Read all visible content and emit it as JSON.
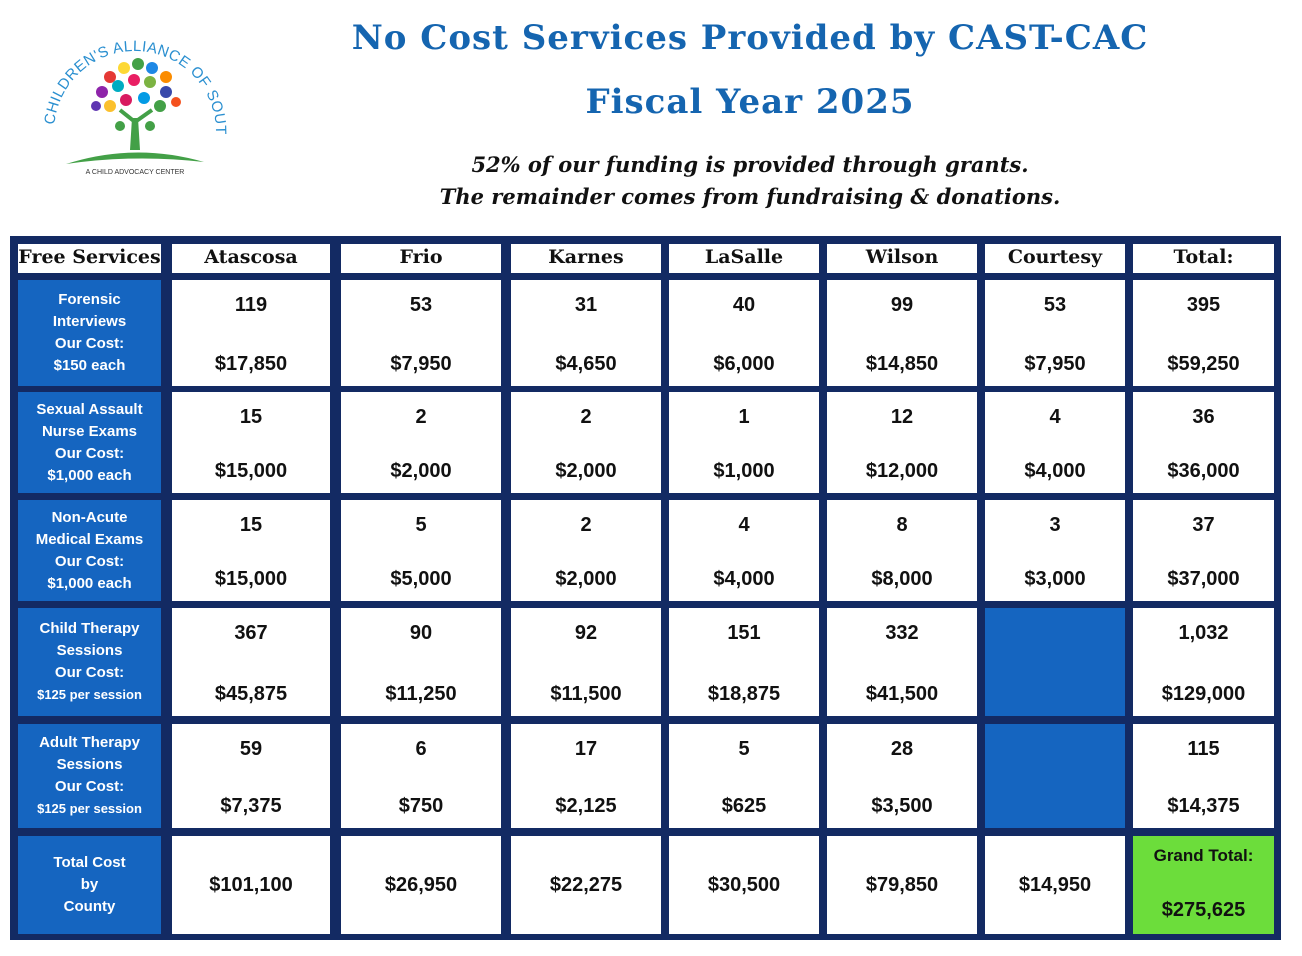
{
  "header": {
    "title_line1": "No Cost Services Provided by CAST-CAC",
    "title_line2": "Fiscal Year 2025",
    "subtitle_line1": "52% of our funding is provided through grants.",
    "subtitle_line2": "The remainder comes from fundraising & donations."
  },
  "logo": {
    "arc_text": "CHILDREN'S ALLIANCE OF SOUTH TEXAS",
    "tagline": "A CHILD ADVOCACY CENTER"
  },
  "table": {
    "corner": "Free Services",
    "columns": [
      "Atascosa",
      "Frio",
      "Karnes",
      "LaSalle",
      "Wilson",
      "Courtesy",
      "Total:"
    ],
    "rows": [
      {
        "label_lines": [
          "Forensic",
          "Interviews",
          "Our Cost:",
          "$150 each"
        ],
        "cells": [
          {
            "count": "119",
            "cost": "$17,850"
          },
          {
            "count": "53",
            "cost": "$7,950"
          },
          {
            "count": "31",
            "cost": "$4,650"
          },
          {
            "count": "40",
            "cost": "$6,000"
          },
          {
            "count": "99",
            "cost": "$14,850"
          },
          {
            "count": "53",
            "cost": "$7,950"
          },
          {
            "count": "395",
            "cost": "$59,250"
          }
        ]
      },
      {
        "label_lines": [
          "Sexual Assault",
          "Nurse Exams",
          "Our Cost:",
          "$1,000 each"
        ],
        "cells": [
          {
            "count": "15",
            "cost": "$15,000"
          },
          {
            "count": "2",
            "cost": "$2,000"
          },
          {
            "count": "2",
            "cost": "$2,000"
          },
          {
            "count": "1",
            "cost": "$1,000"
          },
          {
            "count": "12",
            "cost": "$12,000"
          },
          {
            "count": "4",
            "cost": "$4,000"
          },
          {
            "count": "36",
            "cost": "$36,000"
          }
        ]
      },
      {
        "label_lines": [
          "Non-Acute",
          "Medical Exams",
          "Our Cost:",
          "$1,000 each"
        ],
        "cells": [
          {
            "count": "15",
            "cost": "$15,000"
          },
          {
            "count": "5",
            "cost": "$5,000"
          },
          {
            "count": "2",
            "cost": "$2,000"
          },
          {
            "count": "4",
            "cost": "$4,000"
          },
          {
            "count": "8",
            "cost": "$8,000"
          },
          {
            "count": "3",
            "cost": "$3,000"
          },
          {
            "count": "37",
            "cost": "$37,000"
          }
        ]
      },
      {
        "label_lines": [
          "Child Therapy",
          "Sessions",
          "Our Cost:",
          "$125 per session"
        ],
        "cells": [
          {
            "count": "367",
            "cost": "$45,875"
          },
          {
            "count": "90",
            "cost": "$11,250"
          },
          {
            "count": "92",
            "cost": "$11,500"
          },
          {
            "count": "151",
            "cost": "$18,875"
          },
          {
            "count": "332",
            "cost": "$41,500"
          },
          null,
          {
            "count": "1,032",
            "cost": "$129,000"
          }
        ]
      },
      {
        "label_lines": [
          "Adult Therapy",
          "Sessions",
          "Our Cost:",
          "$125 per session"
        ],
        "cells": [
          {
            "count": "59",
            "cost": "$7,375"
          },
          {
            "count": "6",
            "cost": "$750"
          },
          {
            "count": "17",
            "cost": "$2,125"
          },
          {
            "count": "5",
            "cost": "$625"
          },
          {
            "count": "28",
            "cost": "$3,500"
          },
          null,
          {
            "count": "115",
            "cost": "$14,375"
          }
        ]
      }
    ],
    "total_row": {
      "label_lines": [
        "Total Cost",
        "by",
        "County"
      ],
      "values": [
        "$101,100",
        "$26,950",
        "$22,275",
        "$30,500",
        "$79,850",
        "$14,950"
      ],
      "grand_label": "Grand Total:",
      "grand_value": "$275,625"
    }
  },
  "colors": {
    "title": "#1565b0",
    "frame": "#132a63",
    "label_bg": "#1565c0",
    "grand_bg": "#6cdd3b"
  }
}
